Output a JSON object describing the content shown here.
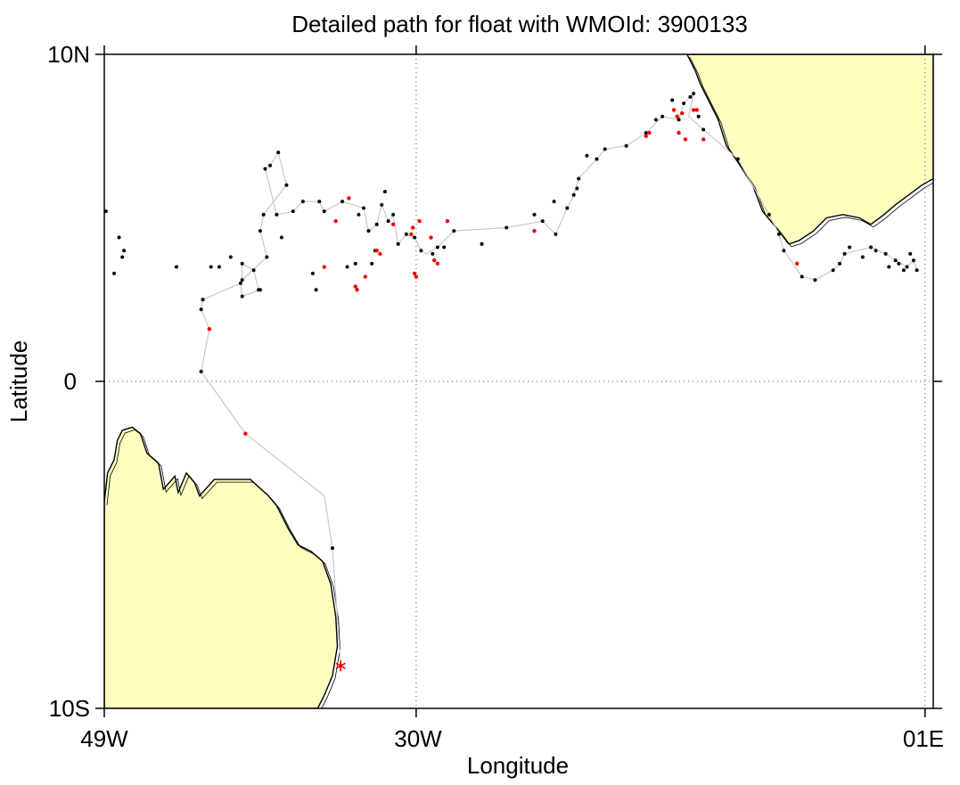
{
  "title": "Detailed path for float with WMOId: 3900133",
  "x_axis": {
    "label": "Longitude",
    "ticks": [
      {
        "value": -49,
        "label": "49W"
      },
      {
        "value": -30,
        "label": "30W"
      },
      {
        "value": 1,
        "label": "01E"
      }
    ]
  },
  "y_axis": {
    "label": "Latitude",
    "ticks": [
      {
        "value": 10,
        "label": "10N"
      },
      {
        "value": 0,
        "label": "0"
      },
      {
        "value": -10,
        "label": "10S"
      }
    ]
  },
  "colors": {
    "land": "#ffffc0",
    "coast": "#000000",
    "track": "#c8c8c8",
    "point": "#000000",
    "highlight_point": "#ee0000",
    "start_marker": "#ee0000"
  },
  "chart_data": {
    "type": "scatter",
    "projection": "lon-lat",
    "xlim": [
      -49,
      1.5
    ],
    "ylim": [
      -10,
      10
    ],
    "grid": true,
    "start_marker": "asterisk",
    "track": [
      [
        -34.6,
        -8.7
      ],
      [
        -35.1,
        -5.1
      ],
      [
        -35.6,
        -3.5
      ],
      [
        -40.4,
        -1.6
      ],
      [
        -43.1,
        0.3
      ],
      [
        -42.6,
        1.6
      ],
      [
        -43.1,
        2.2
      ],
      [
        -43.0,
        2.5
      ],
      [
        -40.7,
        3.0
      ],
      [
        -40.6,
        2.6
      ],
      [
        -39.5,
        2.8
      ],
      [
        -39.6,
        2.8
      ],
      [
        -39.9,
        3.4
      ],
      [
        -40.6,
        3.6
      ],
      [
        -40.6,
        3.1
      ],
      [
        -39.1,
        3.8
      ],
      [
        -39.5,
        4.6
      ],
      [
        -39.3,
        5.1
      ],
      [
        -37.9,
        6.0
      ],
      [
        -38.4,
        7.0
      ],
      [
        -38.9,
        6.6
      ],
      [
        -39.2,
        6.5
      ],
      [
        -38.5,
        5.1
      ],
      [
        -37.5,
        5.2
      ],
      [
        -36.9,
        5.5
      ],
      [
        -35.9,
        5.5
      ],
      [
        -35.6,
        5.2
      ],
      [
        -34.5,
        5.5
      ],
      [
        -33.2,
        5.3
      ],
      [
        -32.9,
        4.6
      ],
      [
        -32.4,
        4.8
      ],
      [
        -32.1,
        5.4
      ],
      [
        -31.7,
        4.9
      ],
      [
        -31.4,
        5.1
      ],
      [
        -31.1,
        4.2
      ],
      [
        -30.6,
        4.5
      ],
      [
        -30.1,
        4.4
      ],
      [
        -29.7,
        4.0
      ],
      [
        -29.4,
        3.9
      ],
      [
        -28.7,
        4.1
      ],
      [
        -27.7,
        4.6
      ],
      [
        -24.5,
        4.7
      ],
      [
        -22.3,
        4.9
      ],
      [
        -21.5,
        4.5
      ],
      [
        -20.8,
        5.3
      ],
      [
        -20.4,
        5.7
      ],
      [
        -20.1,
        6.2
      ],
      [
        -19.0,
        6.8
      ],
      [
        -18.5,
        7.1
      ],
      [
        -17.2,
        7.2
      ],
      [
        -16.0,
        7.6
      ],
      [
        -15.0,
        8.1
      ],
      [
        -14.0,
        8.0
      ],
      [
        -13.7,
        8.5
      ],
      [
        -13.1,
        8.8
      ],
      [
        -13.4,
        8.1
      ],
      [
        -12.5,
        7.7
      ],
      [
        -10.4,
        6.8
      ],
      [
        -8.5,
        5.1
      ],
      [
        -7.9,
        4.5
      ],
      [
        -7.6,
        4.0
      ],
      [
        -6.5,
        3.2
      ],
      [
        -5.7,
        3.1
      ],
      [
        -4.6,
        3.4
      ],
      [
        -4.2,
        3.6
      ],
      [
        -3.9,
        3.9
      ],
      [
        -2.3,
        4.1
      ],
      [
        -1.4,
        3.9
      ],
      [
        -0.8,
        3.7
      ],
      [
        -0.1,
        3.5
      ],
      [
        0.3,
        3.7
      ],
      [
        0.5,
        3.4
      ]
    ],
    "points": [
      [
        -34.6,
        -8.7
      ],
      [
        -35.1,
        -5.1
      ],
      [
        -43.1,
        0.3
      ],
      [
        -42.6,
        1.6
      ],
      [
        -43.1,
        2.2
      ],
      [
        -43.0,
        2.5
      ],
      [
        -42.0,
        3.5
      ],
      [
        -40.6,
        2.6
      ],
      [
        -40.7,
        3.0
      ],
      [
        -39.5,
        2.8
      ],
      [
        -39.6,
        2.8
      ],
      [
        -39.9,
        3.4
      ],
      [
        -40.6,
        3.6
      ],
      [
        -40.6,
        3.1
      ],
      [
        -39.1,
        3.8
      ],
      [
        -39.5,
        4.6
      ],
      [
        -39.3,
        5.1
      ],
      [
        -37.9,
        6.0
      ],
      [
        -38.4,
        7.0
      ],
      [
        -38.9,
        6.6
      ],
      [
        -39.2,
        6.5
      ],
      [
        -38.5,
        5.1
      ],
      [
        -37.5,
        5.2
      ],
      [
        -36.9,
        5.5
      ],
      [
        -35.9,
        5.5
      ],
      [
        -35.6,
        5.2
      ],
      [
        -34.5,
        5.5
      ],
      [
        -33.2,
        5.3
      ],
      [
        -32.9,
        4.6
      ],
      [
        -32.4,
        4.8
      ],
      [
        -32.1,
        5.4
      ],
      [
        -31.7,
        4.9
      ],
      [
        -31.4,
        5.1
      ],
      [
        -31.1,
        4.2
      ],
      [
        -30.6,
        4.5
      ],
      [
        -30.1,
        4.4
      ],
      [
        -29.7,
        4.0
      ],
      [
        -28.7,
        4.1
      ],
      [
        -27.7,
        4.6
      ],
      [
        -24.5,
        4.7
      ],
      [
        -21.5,
        4.5
      ],
      [
        -20.8,
        5.3
      ],
      [
        -20.4,
        5.7
      ],
      [
        -20.1,
        6.2
      ],
      [
        -19.0,
        6.8
      ],
      [
        -18.5,
        7.1
      ],
      [
        -17.2,
        7.2
      ],
      [
        -16.0,
        7.6
      ],
      [
        -15.0,
        8.1
      ],
      [
        -14.0,
        8.0
      ],
      [
        -13.7,
        8.5
      ],
      [
        -13.1,
        8.8
      ],
      [
        -12.5,
        7.7
      ],
      [
        -10.4,
        6.8
      ],
      [
        -8.5,
        5.1
      ],
      [
        -7.9,
        4.5
      ],
      [
        -7.6,
        4.0
      ],
      [
        -6.5,
        3.2
      ],
      [
        -5.7,
        3.1
      ],
      [
        -4.6,
        3.4
      ],
      [
        -4.2,
        3.6
      ],
      [
        -3.9,
        3.9
      ],
      [
        -2.3,
        4.1
      ],
      [
        -1.4,
        3.9
      ],
      [
        -0.8,
        3.7
      ],
      [
        -0.1,
        3.5
      ],
      [
        0.3,
        3.7
      ],
      [
        0.5,
        3.4
      ],
      [
        -47.8,
        4.0
      ],
      [
        -48.4,
        3.3
      ],
      [
        -48.1,
        4.4
      ],
      [
        -47.9,
        3.8
      ],
      [
        -48.9,
        5.2
      ],
      [
        -44.6,
        3.5
      ],
      [
        -42.5,
        3.5
      ],
      [
        -41.3,
        3.8
      ],
      [
        -38.2,
        4.4
      ],
      [
        -36.3,
        3.3
      ],
      [
        -36.1,
        2.8
      ],
      [
        -34.2,
        3.5
      ],
      [
        -33.7,
        3.6
      ],
      [
        -32.7,
        3.6
      ],
      [
        -32.5,
        4.0
      ],
      [
        -33.5,
        5.1
      ],
      [
        -31.9,
        5.8
      ],
      [
        -29.0,
        3.9
      ],
      [
        -28.3,
        4.1
      ],
      [
        -26.0,
        4.2
      ],
      [
        -22.8,
        5.1
      ],
      [
        -22.3,
        4.9
      ],
      [
        -21.6,
        5.5
      ],
      [
        -20.2,
        5.9
      ],
      [
        -19.6,
        6.9
      ],
      [
        -15.4,
        8.0
      ],
      [
        -14.4,
        8.6
      ],
      [
        -13.3,
        8.7
      ],
      [
        -12.8,
        8.1
      ],
      [
        -3.6,
        4.1
      ],
      [
        -2.8,
        3.8
      ],
      [
        -2.0,
        4.0
      ],
      [
        -1.2,
        3.5
      ],
      [
        -0.6,
        3.6
      ],
      [
        -0.3,
        3.4
      ],
      [
        0.1,
        3.9
      ]
    ],
    "highlight_points": [
      [
        -40.4,
        -1.6
      ],
      [
        -42.6,
        1.6
      ],
      [
        -35.6,
        3.5
      ],
      [
        -33.7,
        2.9
      ],
      [
        -33.6,
        2.8
      ],
      [
        -33.1,
        3.2
      ],
      [
        -32.4,
        4.0
      ],
      [
        -32.2,
        3.9
      ],
      [
        -31.4,
        4.8
      ],
      [
        -30.3,
        4.5
      ],
      [
        -30.2,
        4.7
      ],
      [
        -30.1,
        3.3
      ],
      [
        -30.0,
        3.2
      ],
      [
        -29.8,
        4.9
      ],
      [
        -29.1,
        4.4
      ],
      [
        -28.9,
        3.7
      ],
      [
        -28.7,
        3.6
      ],
      [
        -28.1,
        4.9
      ],
      [
        -34.1,
        5.6
      ],
      [
        -34.9,
        4.9
      ],
      [
        -22.8,
        4.6
      ],
      [
        -16.0,
        7.5
      ],
      [
        -15.8,
        7.6
      ],
      [
        -14.3,
        8.3
      ],
      [
        -14.1,
        8.1
      ],
      [
        -14.0,
        7.6
      ],
      [
        -13.8,
        8.2
      ],
      [
        -13.6,
        7.4
      ],
      [
        -13.1,
        8.3
      ],
      [
        -12.9,
        8.3
      ],
      [
        -12.5,
        7.4
      ],
      [
        -6.8,
        3.6
      ]
    ],
    "land": [
      {
        "name": "South America",
        "polygon": [
          [
            -49,
            -3.7
          ],
          [
            -48.8,
            -2.8
          ],
          [
            -48.4,
            -2.4
          ],
          [
            -48.2,
            -1.8
          ],
          [
            -47.9,
            -1.5
          ],
          [
            -47.3,
            -1.4
          ],
          [
            -46.8,
            -1.6
          ],
          [
            -46.4,
            -2.2
          ],
          [
            -45.7,
            -2.5
          ],
          [
            -45.4,
            -3.3
          ],
          [
            -44.7,
            -2.9
          ],
          [
            -44.5,
            -3.4
          ],
          [
            -44.0,
            -2.8
          ],
          [
            -43.5,
            -3.1
          ],
          [
            -43.2,
            -3.5
          ],
          [
            -42.3,
            -3.0
          ],
          [
            -41.3,
            -3.0
          ],
          [
            -40.1,
            -3.0
          ],
          [
            -39.0,
            -3.5
          ],
          [
            -38.5,
            -3.8
          ],
          [
            -37.8,
            -4.5
          ],
          [
            -37.2,
            -5.0
          ],
          [
            -36.4,
            -5.2
          ],
          [
            -35.7,
            -5.5
          ],
          [
            -35.2,
            -6.2
          ],
          [
            -34.9,
            -7.2
          ],
          [
            -34.8,
            -8.1
          ],
          [
            -35.1,
            -9.0
          ],
          [
            -35.6,
            -9.6
          ],
          [
            -36.0,
            -10.0
          ],
          [
            -49,
            -10.0
          ]
        ]
      },
      {
        "name": "West Africa",
        "polygon": [
          [
            -13.5,
            10.0
          ],
          [
            -13.0,
            9.5
          ],
          [
            -12.7,
            9.1
          ],
          [
            -12.2,
            8.6
          ],
          [
            -11.6,
            8.0
          ],
          [
            -11.1,
            7.2
          ],
          [
            -10.4,
            6.7
          ],
          [
            -9.5,
            6.0
          ],
          [
            -8.9,
            5.2
          ],
          [
            -7.9,
            4.6
          ],
          [
            -7.3,
            4.2
          ],
          [
            -6.7,
            4.3
          ],
          [
            -5.8,
            4.6
          ],
          [
            -5.0,
            5.0
          ],
          [
            -4.0,
            5.1
          ],
          [
            -3.0,
            5.0
          ],
          [
            -2.3,
            4.8
          ],
          [
            -1.5,
            5.1
          ],
          [
            -0.8,
            5.4
          ],
          [
            0.0,
            5.7
          ],
          [
            0.8,
            6.0
          ],
          [
            1.5,
            6.2
          ],
          [
            1.5,
            10.0
          ]
        ]
      }
    ]
  }
}
